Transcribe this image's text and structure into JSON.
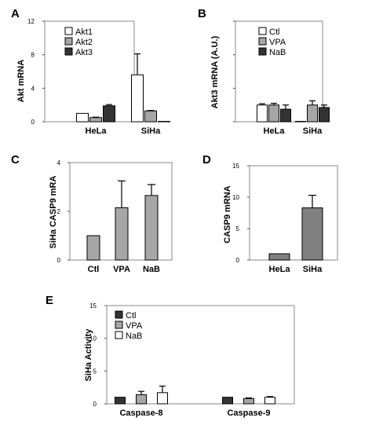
{
  "chart_data": [
    {
      "panel": "A",
      "type": "bar",
      "categories": [
        "HeLa",
        "SiHa"
      ],
      "series": [
        {
          "name": "Akt1",
          "color": "#ffffff",
          "values": [
            1.0,
            5.6
          ],
          "errors": [
            0.0,
            2.5
          ]
        },
        {
          "name": "Akt2",
          "color": "#a6a6a6",
          "values": [
            0.5,
            1.3
          ],
          "errors": [
            0.05,
            0.05
          ]
        },
        {
          "name": "Akt3",
          "color": "#333333",
          "values": [
            1.9,
            0.05
          ],
          "errors": [
            0.15,
            0.0
          ]
        }
      ],
      "ylabel": "Akt mRNA",
      "ylim": [
        0,
        12
      ],
      "yticks": [
        0,
        4,
        8,
        12
      ],
      "legend": "top-left"
    },
    {
      "panel": "B",
      "type": "bar",
      "categories": [
        "HeLa",
        "SiHa"
      ],
      "series": [
        {
          "name": "Ctl",
          "color": "#ffffff",
          "values": [
            2.0,
            0.05
          ],
          "errors": [
            0.15,
            0.0
          ]
        },
        {
          "name": "VPA",
          "color": "#a6a6a6",
          "values": [
            2.0,
            2.0
          ],
          "errors": [
            0.2,
            0.5
          ]
        },
        {
          "name": "NaB",
          "color": "#333333",
          "values": [
            1.5,
            1.7
          ],
          "errors": [
            0.5,
            0.3
          ]
        }
      ],
      "ylabel": "Akt3 mRNA (A.U.)",
      "ylim": [
        0,
        12
      ],
      "yticks": [
        0,
        4,
        8,
        12
      ],
      "legend": "top-left"
    },
    {
      "panel": "C",
      "type": "bar",
      "categories": [
        "Ctl",
        "VPA",
        "NaB"
      ],
      "series": [
        {
          "color": "#a6a6a6",
          "values": [
            1.0,
            2.15,
            2.65
          ],
          "errors": [
            0.0,
            1.1,
            0.45
          ]
        }
      ],
      "ylabel": "SiHa CASP9 mRA",
      "ylim": [
        0,
        4
      ],
      "yticks": [
        0,
        2,
        4
      ]
    },
    {
      "panel": "D",
      "type": "bar",
      "categories": [
        "HeLa",
        "SiHa"
      ],
      "series": [
        {
          "color": "#808080",
          "values": [
            1.0,
            8.3
          ],
          "errors": [
            0.0,
            2.0
          ]
        }
      ],
      "ylabel": "CASP9 mRNA",
      "ylim": [
        0,
        15
      ],
      "yticks": [
        0,
        5,
        10,
        15
      ]
    },
    {
      "panel": "E",
      "type": "bar",
      "categories": [
        "Caspase-8",
        "Caspase-9"
      ],
      "series": [
        {
          "name": "Ctl",
          "color": "#333333",
          "values": [
            1.0,
            1.0
          ],
          "errors": [
            0.0,
            0.0
          ]
        },
        {
          "name": "VPA",
          "color": "#a6a6a6",
          "values": [
            1.4,
            0.8
          ],
          "errors": [
            0.5,
            0.1
          ]
        },
        {
          "name": "NaB",
          "color": "#ffffff",
          "values": [
            1.7,
            1.0
          ],
          "errors": [
            1.0,
            0.1
          ]
        }
      ],
      "ylabel": "SiHa Activity",
      "ylim": [
        0,
        15
      ],
      "yticks": [
        0,
        5,
        10,
        15
      ],
      "legend": "top-left"
    }
  ]
}
